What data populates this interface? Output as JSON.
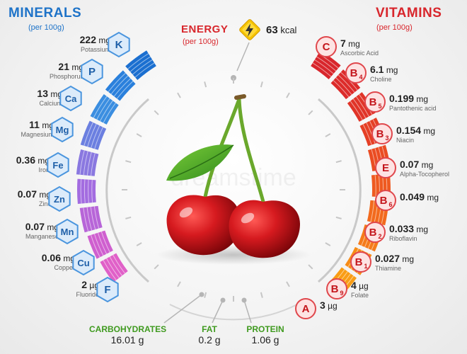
{
  "minerals": {
    "title": "MINERALS",
    "subtitle": "(per 100g)",
    "items": [
      {
        "symbol": "K",
        "value": "222",
        "unit": "mg",
        "name": "Potassium"
      },
      {
        "symbol": "P",
        "value": "21",
        "unit": "mg",
        "name": "Phosphorus"
      },
      {
        "symbol": "Ca",
        "value": "13",
        "unit": "mg",
        "name": "Calcium"
      },
      {
        "symbol": "Mg",
        "value": "11",
        "unit": "mg",
        "name": "Magnesium"
      },
      {
        "symbol": "Fe",
        "value": "0.36",
        "unit": "mg",
        "name": "Iron"
      },
      {
        "symbol": "Zn",
        "value": "0.07",
        "unit": "mg",
        "name": "Zinc"
      },
      {
        "symbol": "Mn",
        "value": "0.07",
        "unit": "mg",
        "name": "Manganese"
      },
      {
        "symbol": "Cu",
        "value": "0.06",
        "unit": "mg",
        "name": "Copper"
      },
      {
        "symbol": "F",
        "value": "2",
        "unit": "µg",
        "name": "Fluoride"
      }
    ]
  },
  "vitamins": {
    "title": "VITAMINS",
    "subtitle": "(per 100g)",
    "items": [
      {
        "symbol": "C",
        "sub": "",
        "value": "7",
        "unit": "mg",
        "name": "Ascorbic Acid"
      },
      {
        "symbol": "B",
        "sub": "4",
        "value": "6.1",
        "unit": "mg",
        "name": "Choline"
      },
      {
        "symbol": "B",
        "sub": "5",
        "value": "0.199",
        "unit": "mg",
        "name": "Pantothenic acid"
      },
      {
        "symbol": "B",
        "sub": "3",
        "value": "0.154",
        "unit": "mg",
        "name": "Niacin"
      },
      {
        "symbol": "E",
        "sub": "",
        "value": "0.07",
        "unit": "mg",
        "name": "Alpha-Tocopherol"
      },
      {
        "symbol": "B",
        "sub": "6",
        "value": "0.049",
        "unit": "mg",
        "name": ""
      },
      {
        "symbol": "B",
        "sub": "2",
        "value": "0.033",
        "unit": "mg",
        "name": "Riboflavin"
      },
      {
        "symbol": "B",
        "sub": "1",
        "value": "0.027",
        "unit": "mg",
        "name": "Thiamine"
      },
      {
        "symbol": "B",
        "sub": "9",
        "value": "4",
        "unit": "µg",
        "name": "Folate"
      },
      {
        "symbol": "A",
        "sub": "",
        "value": "3",
        "unit": "µg",
        "name": ""
      }
    ]
  },
  "energy": {
    "label": "ENERGY",
    "subtitle": "(per 100g)",
    "value": "63",
    "unit": "kcal"
  },
  "macros": [
    {
      "label": "CARBOHYDRATES",
      "value": "16.01 g"
    },
    {
      "label": "FAT",
      "value": "0.2 g"
    },
    {
      "label": "PROTEIN",
      "value": "1.06 g"
    }
  ],
  "colors": {
    "mineral_blue": "#1e73c8",
    "vitamin_red": "#d8262c",
    "macro_green": "#3f9a1f",
    "energy_yellow": "#f5c400"
  },
  "watermark": "dreamstime"
}
